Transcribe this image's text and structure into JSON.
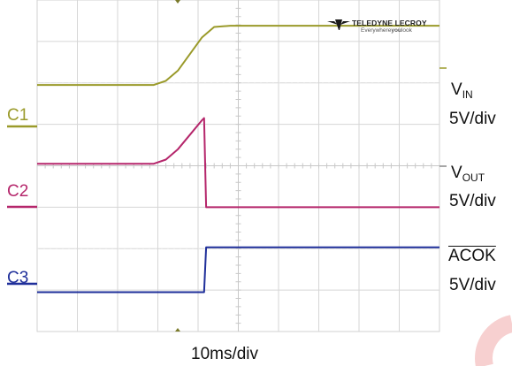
{
  "brand": {
    "name": "TELEDYNE LECROY",
    "tagline_prefix": "Everywhere",
    "tagline_bold": "you",
    "tagline_suffix": "look"
  },
  "time_scale": "10ms/div",
  "channels": [
    {
      "id": "C1",
      "color": "#9a9a2a",
      "signal_main": "V",
      "signal_sub": "IN",
      "overline": false,
      "scale": "5V/div"
    },
    {
      "id": "C2",
      "color": "#b5266b",
      "signal_main": "V",
      "signal_sub": "OUT",
      "overline": false,
      "scale": "5V/div"
    },
    {
      "id": "C3",
      "color": "#1f2f9a",
      "signal_main": "ACOK",
      "signal_sub": "",
      "overline": true,
      "scale": "5V/div"
    }
  ],
  "chart_data": {
    "type": "line",
    "x_unit": "div",
    "xlim": [
      0,
      10
    ],
    "ylim": [
      0,
      8
    ],
    "grid": true,
    "series": [
      {
        "channel": "C1",
        "x": [
          0,
          2.9,
          3.2,
          3.5,
          3.8,
          4.1,
          4.4,
          4.8,
          10
        ],
        "values": [
          5.95,
          5.95,
          6.05,
          6.3,
          6.7,
          7.1,
          7.35,
          7.38,
          7.38
        ]
      },
      {
        "channel": "C2",
        "x": [
          0,
          2.9,
          3.2,
          3.5,
          3.8,
          4.1,
          4.15,
          4.2,
          10
        ],
        "values": [
          4.05,
          4.05,
          4.15,
          4.4,
          4.75,
          5.1,
          5.15,
          3.0,
          3.0
        ]
      },
      {
        "channel": "C3",
        "x": [
          0,
          4.15,
          4.2,
          10
        ],
        "values": [
          0.95,
          0.95,
          2.03,
          2.03
        ]
      }
    ]
  }
}
